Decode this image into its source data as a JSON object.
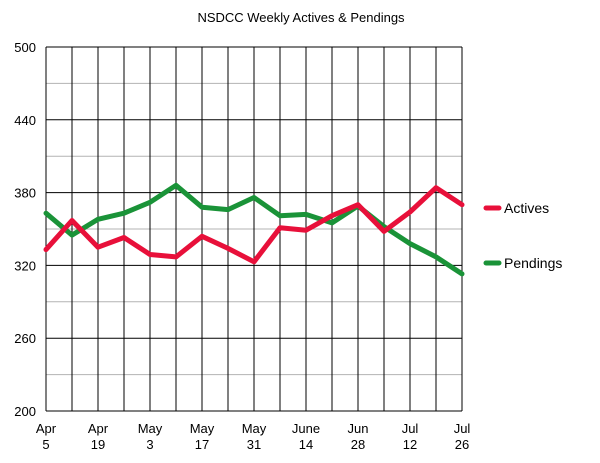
{
  "chart_data": {
    "type": "line",
    "title": "NSDCC Weekly Actives & Pendings",
    "xlabel": "",
    "ylabel": "",
    "ylim": [
      200,
      500
    ],
    "yticks": [
      200,
      260,
      320,
      380,
      440,
      500
    ],
    "x_tick_labels": [
      {
        "line1": "Apr",
        "line2": "5"
      },
      {
        "line1": "Apr",
        "line2": "19"
      },
      {
        "line1": "May",
        "line2": "3"
      },
      {
        "line1": "May",
        "line2": "17"
      },
      {
        "line1": "May",
        "line2": "31"
      },
      {
        "line1": "June",
        "line2": "14"
      },
      {
        "line1": "Jun",
        "line2": "28"
      },
      {
        "line1": "Jul",
        "line2": "12"
      },
      {
        "line1": "Jul",
        "line2": "26"
      }
    ],
    "x": [
      "Apr 5",
      "Apr 12",
      "Apr 19",
      "Apr 26",
      "May 3",
      "May 10",
      "May 17",
      "May 24",
      "May 31",
      "Jun 7",
      "Jun 14",
      "Jun 21",
      "Jun 28",
      "Jul 5",
      "Jul 12",
      "Jul 19",
      "Jul 26"
    ],
    "series": [
      {
        "name": "Actives",
        "color": "#e8103a",
        "values": [
          333,
          357,
          335,
          343,
          329,
          327,
          344,
          334,
          323,
          351,
          349,
          361,
          370,
          348,
          364,
          384,
          370
        ]
      },
      {
        "name": "Pendings",
        "color": "#1a9338",
        "values": [
          363,
          345,
          358,
          363,
          372,
          386,
          368,
          366,
          376,
          361,
          362,
          355,
          369,
          352,
          338,
          327,
          313
        ]
      }
    ],
    "grid": true,
    "legend": "right"
  }
}
